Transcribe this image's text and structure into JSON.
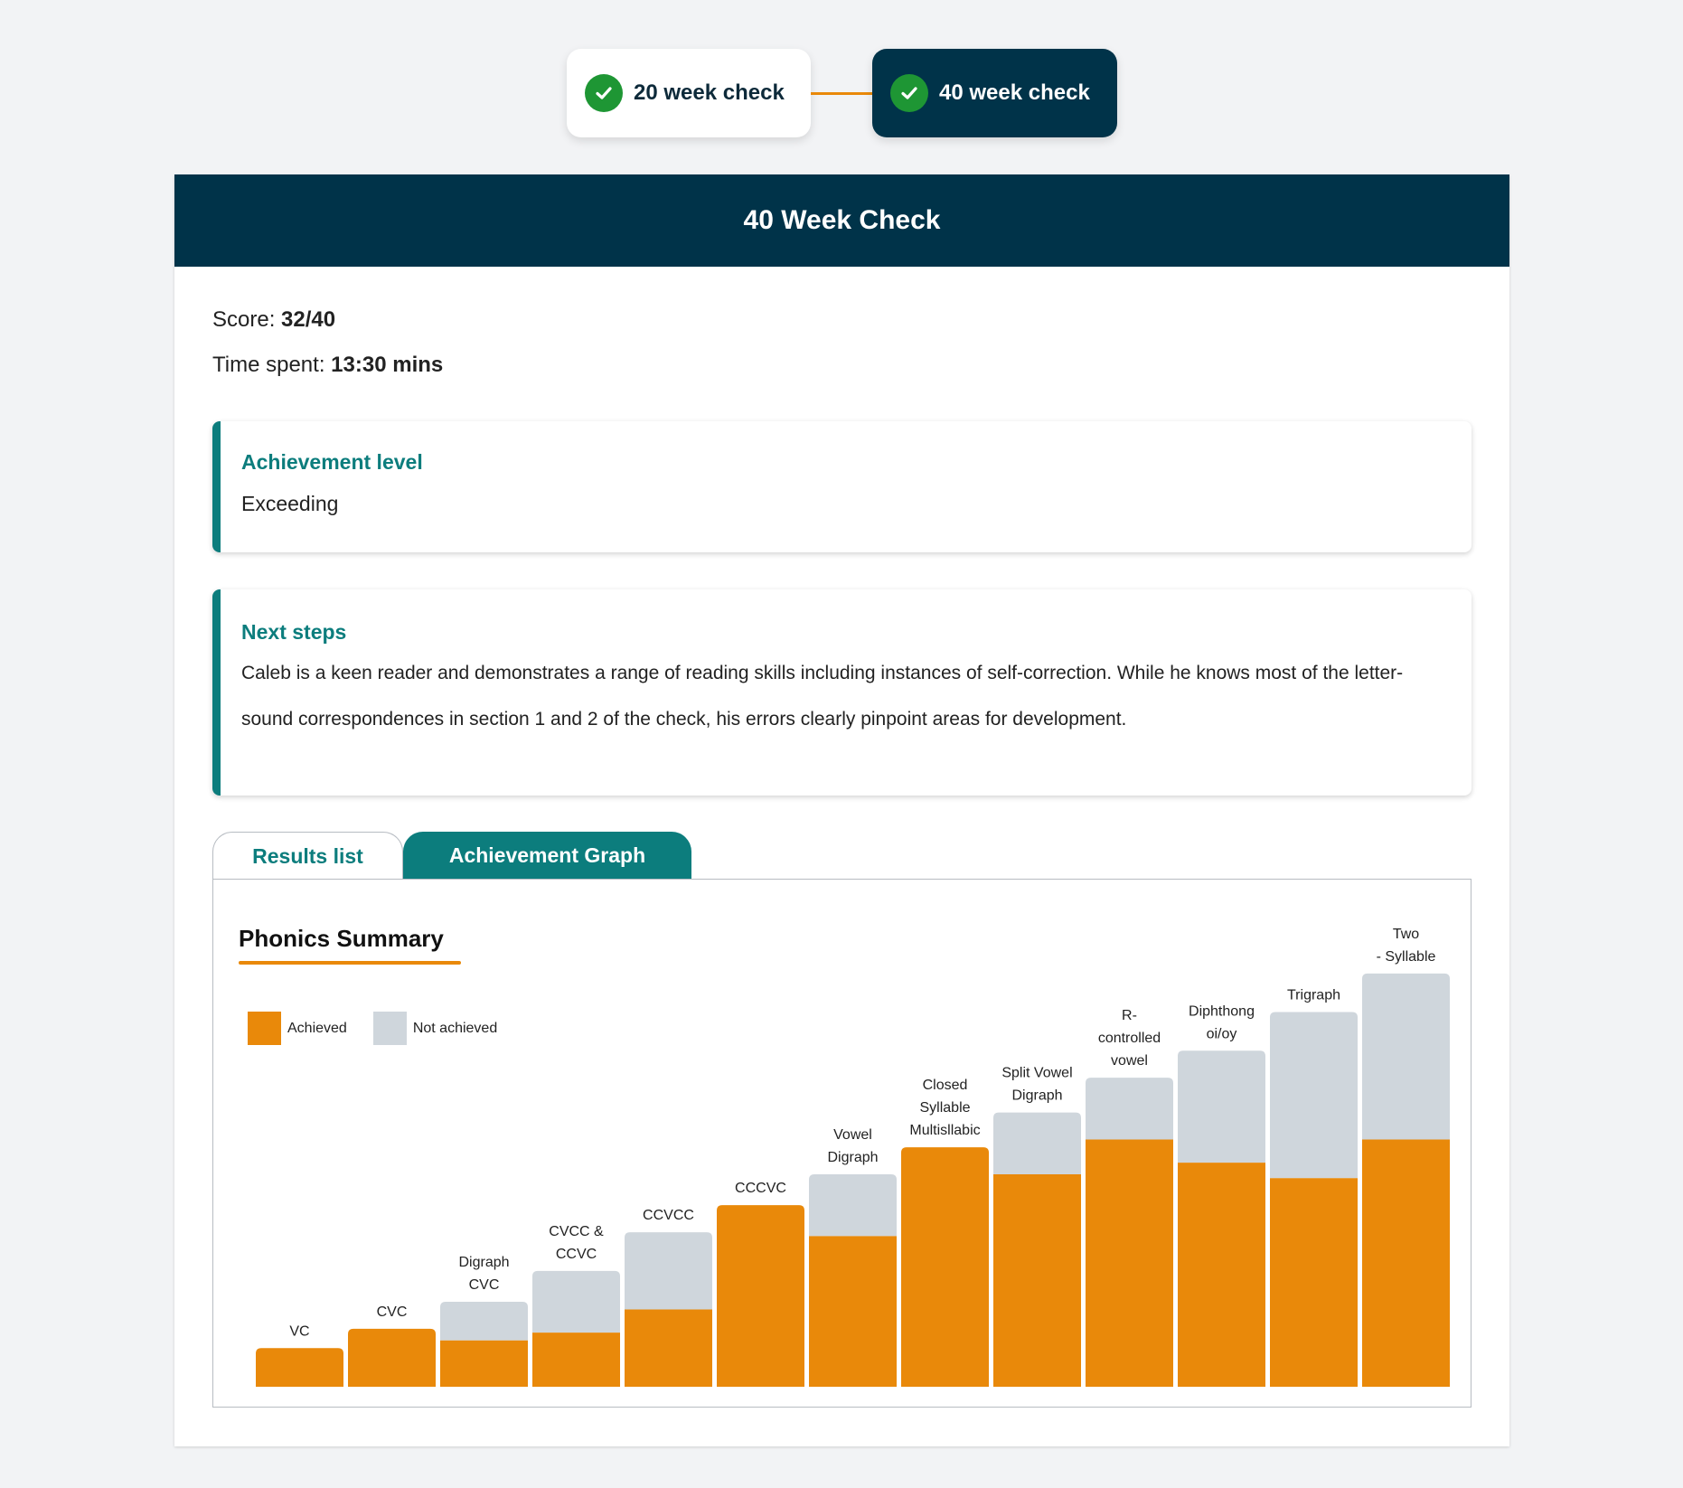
{
  "checks": [
    {
      "label": "20 week check",
      "state": "inactive"
    },
    {
      "label": "40 week check",
      "state": "active"
    }
  ],
  "panel": {
    "title": "40 Week Check",
    "score_label": "Score:",
    "score_value": "32/40",
    "time_label": "Time spent:",
    "time_value": "13:30 mins"
  },
  "achievement": {
    "title": "Achievement level",
    "value": "Exceeding"
  },
  "next_steps": {
    "title": "Next steps",
    "para1": "Caleb is a keen reader and demonstrates a range of reading skills including instances of self-correction. While he knows most of the letter-",
    "para2": "sound correspondences in section 1 and 2 of the check, his errors clearly pinpoint areas for development."
  },
  "tabs": [
    {
      "label": "Results list",
      "active": false
    },
    {
      "label": "Achievement Graph",
      "active": true
    }
  ],
  "colors": {
    "navy": "#003349",
    "teal": "#0c7d7d",
    "orange": "#e9890a",
    "grey": "#cfd6dc",
    "green": "#1e9634"
  },
  "chart_data": {
    "type": "bar",
    "stacked": true,
    "title": "Phonics Summary",
    "legend": [
      "Achieved",
      "Not achieved"
    ],
    "legend_position": "top-left",
    "categories": [
      [
        "VC"
      ],
      [
        "CVC"
      ],
      [
        "Digraph",
        "CVC"
      ],
      [
        "CVCC &",
        "CCVC"
      ],
      [
        "CCVCC"
      ],
      [
        "CCCVC"
      ],
      [
        "Vowel",
        "Digraph"
      ],
      [
        "Closed",
        "Syllable",
        "Multisllabic"
      ],
      [
        "Split Vowel",
        "Digraph"
      ],
      [
        "R-",
        "controlled",
        "vowel"
      ],
      [
        "Diphthong",
        "oi/oy"
      ],
      [
        "Trigraph"
      ],
      [
        "Two",
        "- Syllable"
      ]
    ],
    "series": [
      {
        "name": "Achieved",
        "values": [
          1,
          1.5,
          1.2,
          1.4,
          2,
          4.7,
          3.9,
          6.2,
          5.5,
          6.4,
          5.8,
          5.4,
          6.4
        ]
      },
      {
        "name": "Not achieved",
        "values": [
          0,
          0,
          1,
          1.6,
          2,
          0,
          1.6,
          0,
          1.6,
          1.6,
          2.9,
          4.3,
          4.3
        ]
      }
    ],
    "ylim": [
      0,
      11
    ]
  }
}
